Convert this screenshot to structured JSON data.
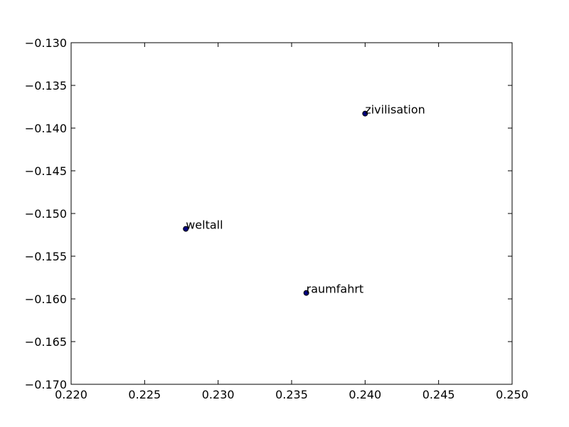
{
  "chart_data": {
    "type": "scatter",
    "title": "",
    "xlabel": "",
    "ylabel": "",
    "xlim": [
      0.22,
      0.25
    ],
    "ylim": [
      -0.17,
      -0.13
    ],
    "grid": false,
    "marker_color": "#00007f",
    "xticks": [
      0.22,
      0.225,
      0.23,
      0.235,
      0.24,
      0.245,
      0.25
    ],
    "xtick_labels": [
      "0.220",
      "0.225",
      "0.230",
      "0.235",
      "0.240",
      "0.245",
      "0.250"
    ],
    "yticks": [
      -0.13,
      -0.135,
      -0.14,
      -0.145,
      -0.15,
      -0.155,
      -0.16,
      -0.165,
      -0.17
    ],
    "ytick_labels": [
      "−0.130",
      "−0.135",
      "−0.140",
      "−0.145",
      "−0.150",
      "−0.155",
      "−0.160",
      "−0.165",
      "−0.170"
    ],
    "points": [
      {
        "label": "zivilisation",
        "x": 0.24,
        "y": -0.1383
      },
      {
        "label": "weltall",
        "x": 0.2278,
        "y": -0.1518
      },
      {
        "label": "raumfahrt",
        "x": 0.236,
        "y": -0.1593
      }
    ]
  }
}
